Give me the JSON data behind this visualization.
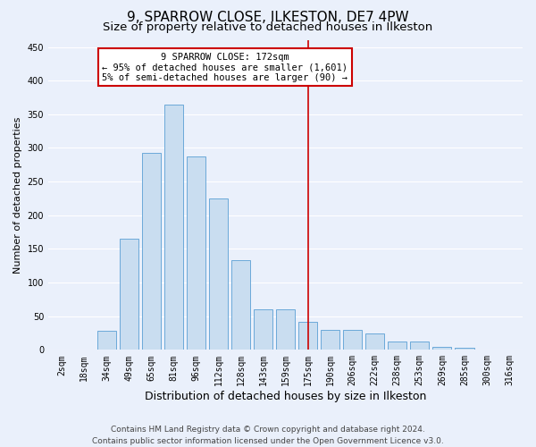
{
  "title": "9, SPARROW CLOSE, ILKESTON, DE7 4PW",
  "subtitle": "Size of property relative to detached houses in Ilkeston",
  "xlabel": "Distribution of detached houses by size in Ilkeston",
  "ylabel": "Number of detached properties",
  "categories": [
    "2sqm",
    "18sqm",
    "34sqm",
    "49sqm",
    "65sqm",
    "81sqm",
    "96sqm",
    "112sqm",
    "128sqm",
    "143sqm",
    "159sqm",
    "175sqm",
    "190sqm",
    "206sqm",
    "222sqm",
    "238sqm",
    "253sqm",
    "269sqm",
    "285sqm",
    "300sqm",
    "316sqm"
  ],
  "values": [
    0,
    0,
    28,
    165,
    293,
    365,
    287,
    225,
    133,
    60,
    60,
    42,
    30,
    30,
    24,
    13,
    13,
    5,
    3,
    0,
    0
  ],
  "bar_color": "#c9ddf0",
  "bar_edge_color": "#5a9fd4",
  "bg_color": "#eaf0fb",
  "grid_color": "#ffffff",
  "annotation_text_line1": "9 SPARROW CLOSE: 172sqm",
  "annotation_text_line2": "← 95% of detached houses are smaller (1,601)",
  "annotation_text_line3": "5% of semi-detached houses are larger (90) →",
  "annotation_box_color": "#ffffff",
  "annotation_box_edge": "#cc0000",
  "vline_color": "#cc0000",
  "vline_bin": 11,
  "footer_line1": "Contains HM Land Registry data © Crown copyright and database right 2024.",
  "footer_line2": "Contains public sector information licensed under the Open Government Licence v3.0.",
  "ylim": [
    0,
    460
  ],
  "yticks": [
    0,
    50,
    100,
    150,
    200,
    250,
    300,
    350,
    400,
    450
  ],
  "title_fontsize": 11,
  "subtitle_fontsize": 9.5,
  "tick_fontsize": 7,
  "ylabel_fontsize": 8,
  "xlabel_fontsize": 9,
  "footer_fontsize": 6.5,
  "annot_fontsize": 7.5
}
